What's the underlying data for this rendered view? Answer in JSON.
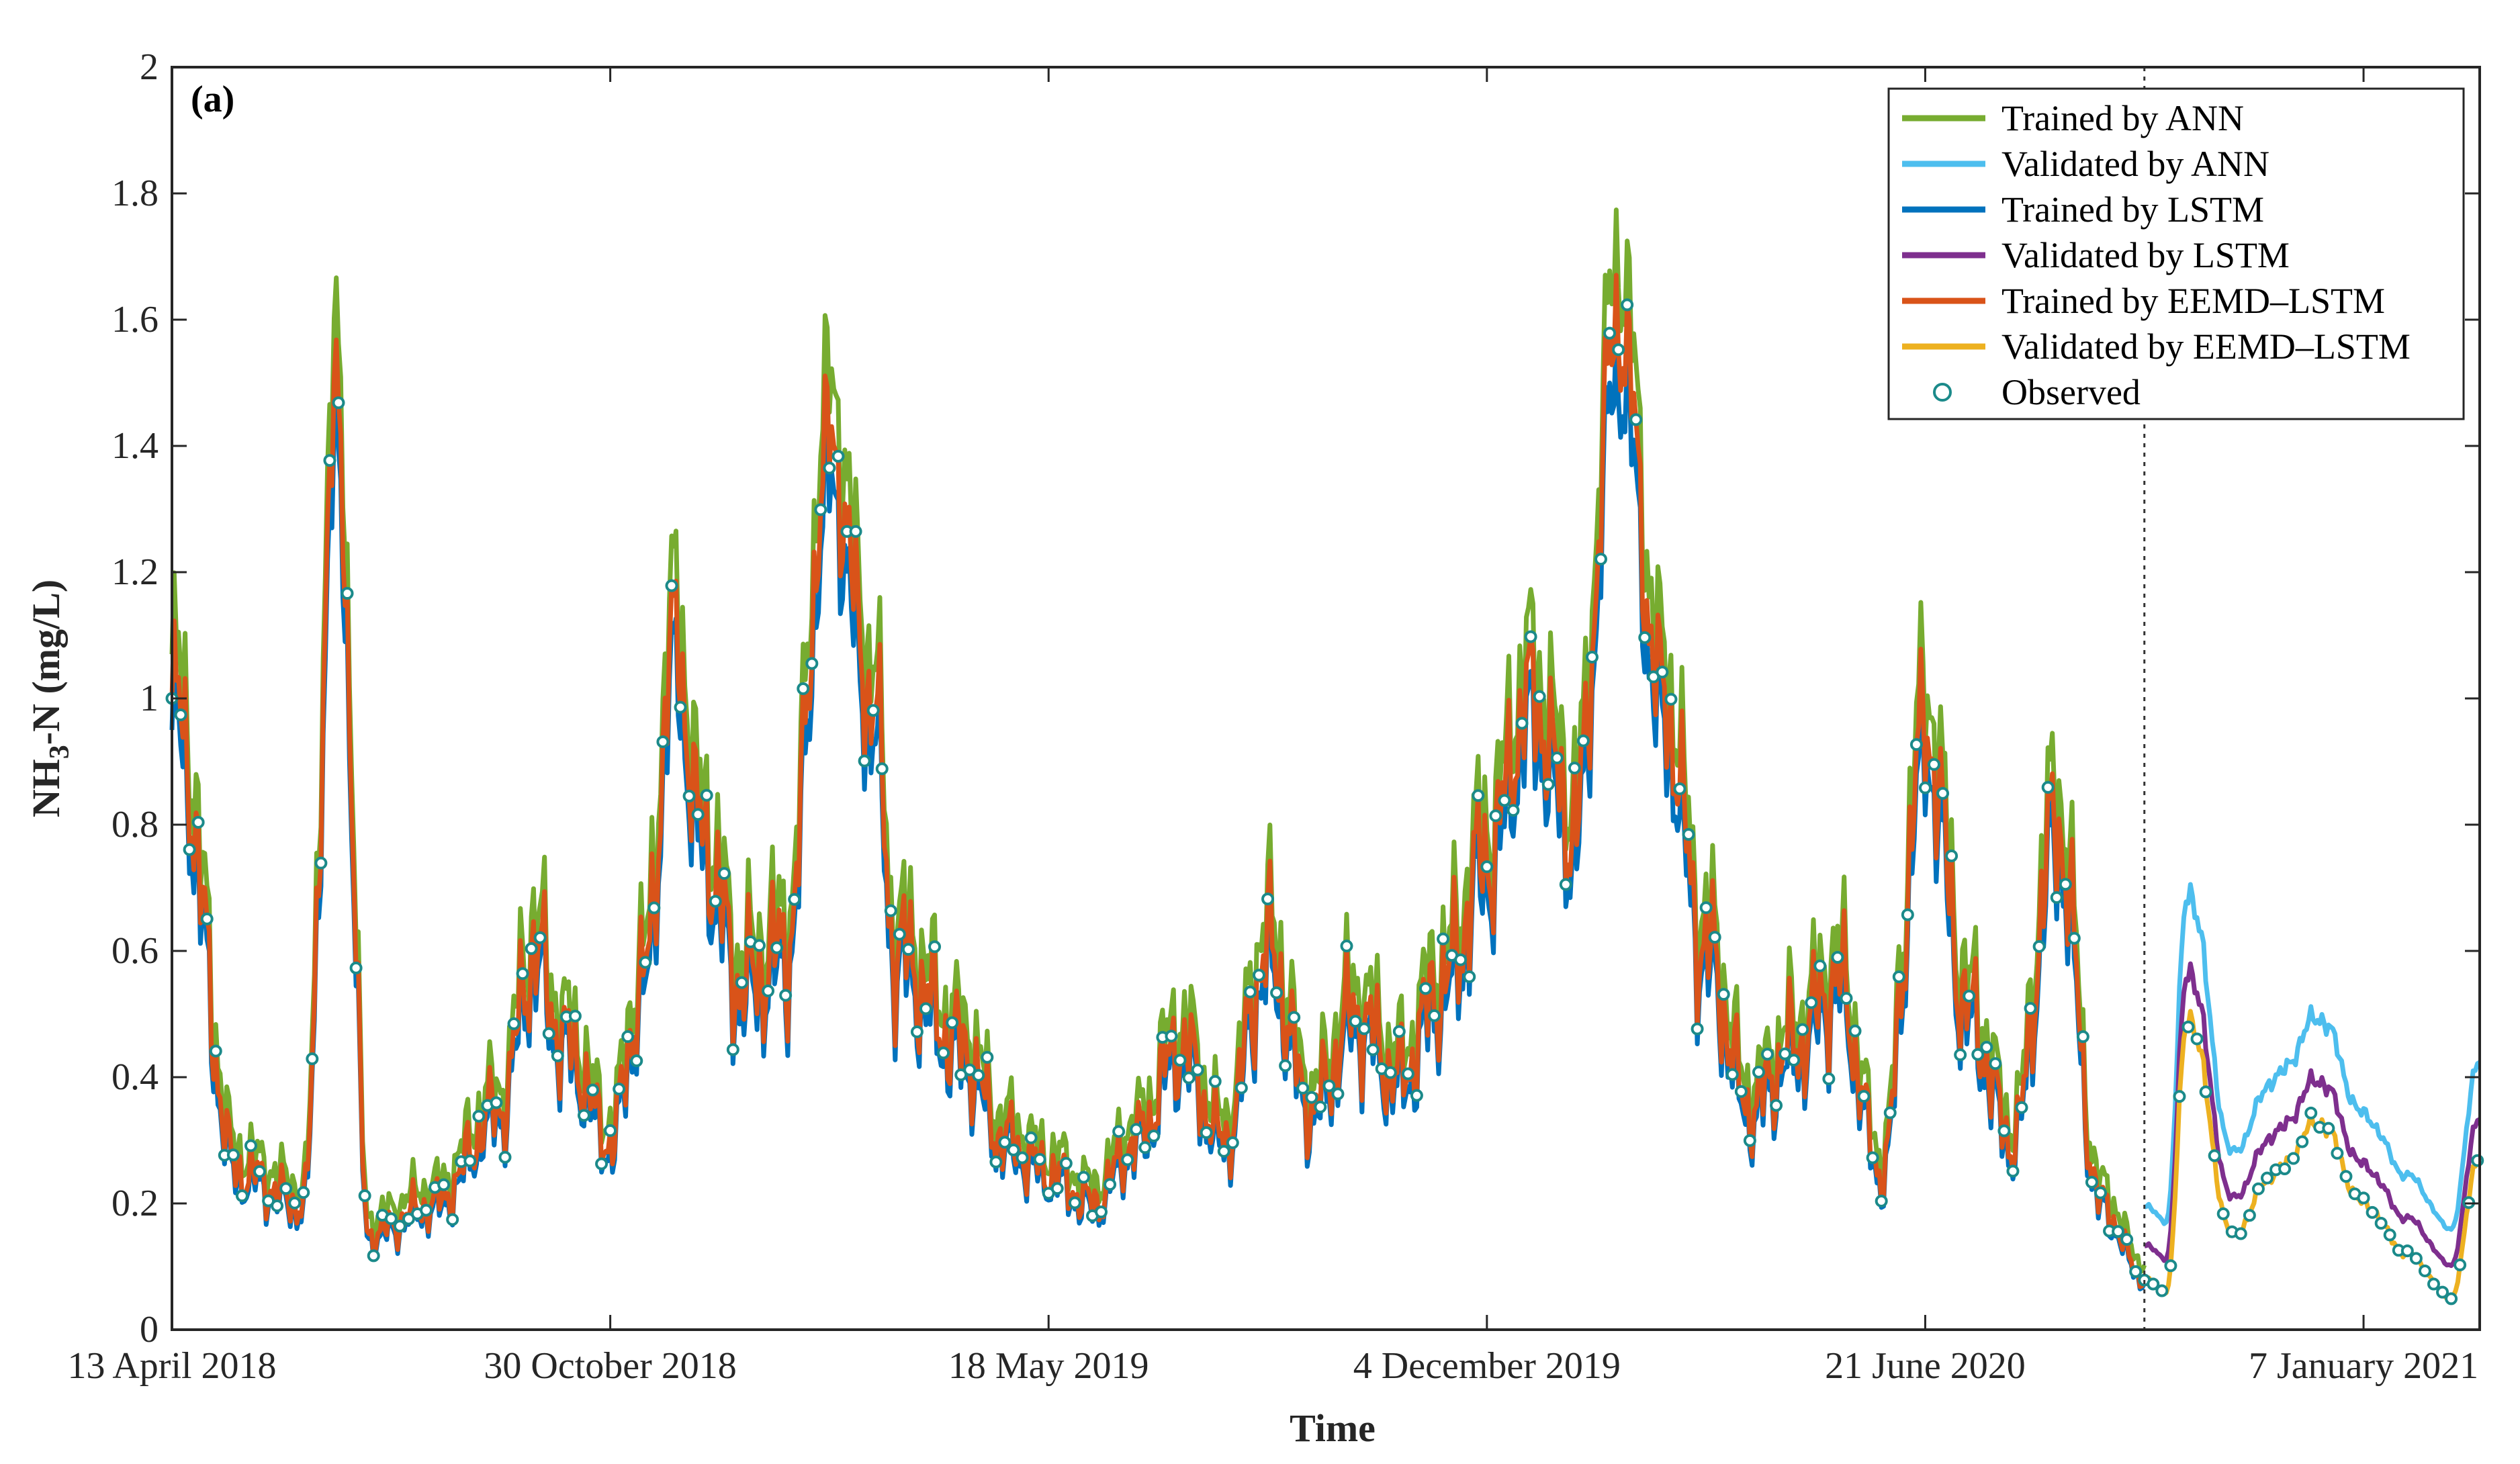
{
  "chart_data": {
    "type": "line",
    "panel_label": "(a)",
    "xlabel": "Time",
    "ylabel": "NH3-N (mg/L)",
    "ylabel_parts": {
      "before": "NH",
      "sub": "3",
      "after": "-N (mg/L)"
    },
    "ylim": [
      0,
      2
    ],
    "yticks": [
      0,
      0.2,
      0.4,
      0.6,
      0.8,
      1,
      1.2,
      1.4,
      1.6,
      1.8,
      2
    ],
    "ytick_labels": [
      "0",
      "0.2",
      "0.4",
      "0.6",
      "0.8",
      "1",
      "1.2",
      "1.4",
      "1.6",
      "1.8",
      "2"
    ],
    "x_unit": "days since 13 April 2018",
    "xlim": [
      0,
      1053
    ],
    "xticks": [
      0,
      200,
      400,
      600,
      800,
      1000
    ],
    "xtick_labels": [
      "13 April 2018",
      "30 October 2018",
      "18 May 2019",
      "4 December 2019",
      "21 June 2020",
      "7 January 2021"
    ],
    "split_x": 900,
    "legend_position": "top-right",
    "series": [
      {
        "name": "Trained by ANN",
        "color": "#77AC30",
        "role": "train",
        "offset": 0.02,
        "scale": 1.05
      },
      {
        "name": "Validated by ANN",
        "color": "#4DBEEE",
        "role": "valid",
        "offset": 0.1,
        "scale": 1.2
      },
      {
        "name": "Trained by LSTM",
        "color": "#0072BD",
        "role": "train",
        "offset": 0.0,
        "scale": 0.95
      },
      {
        "name": "Validated by LSTM",
        "color": "#7E2F8E",
        "role": "valid",
        "offset": 0.05,
        "scale": 1.05
      },
      {
        "name": "Trained by EEMD–LSTM",
        "color": "#D95319",
        "role": "train",
        "offset": 0.0,
        "scale": 1.0
      },
      {
        "name": "Validated by EEMD–LSTM",
        "color": "#EDB120",
        "role": "valid",
        "offset": 0.0,
        "scale": 1.0
      },
      {
        "name": "Observed",
        "color": "#1B8A8A",
        "role": "marker"
      }
    ],
    "observed": {
      "x": [
        0,
        30,
        60,
        75,
        90,
        120,
        150,
        165,
        180,
        200,
        215,
        230,
        240,
        260,
        280,
        300,
        320,
        330,
        360,
        380,
        400,
        420,
        440,
        460,
        480,
        500,
        520,
        540,
        560,
        580,
        600,
        620,
        640,
        660,
        680,
        700,
        720,
        740,
        760,
        780,
        800,
        820,
        840,
        860,
        880,
        900,
        910,
        920,
        940,
        960,
        980,
        1000,
        1020,
        1040,
        1053
      ],
      "y": [
        1.0,
        0.25,
        0.2,
        1.45,
        0.15,
        0.2,
        0.35,
        0.6,
        0.45,
        0.3,
        0.55,
        1.1,
        0.8,
        0.55,
        0.6,
        1.4,
        1.0,
        0.6,
        0.45,
        0.3,
        0.25,
        0.2,
        0.3,
        0.45,
        0.3,
        0.6,
        0.35,
        0.5,
        0.4,
        0.55,
        0.75,
        1.0,
        0.8,
        1.6,
        1.0,
        0.6,
        0.35,
        0.45,
        0.55,
        0.25,
        0.95,
        0.5,
        0.3,
        0.8,
        0.2,
        0.08,
        0.06,
        0.5,
        0.15,
        0.25,
        0.33,
        0.2,
        0.12,
        0.05,
        0.28
      ]
    }
  }
}
